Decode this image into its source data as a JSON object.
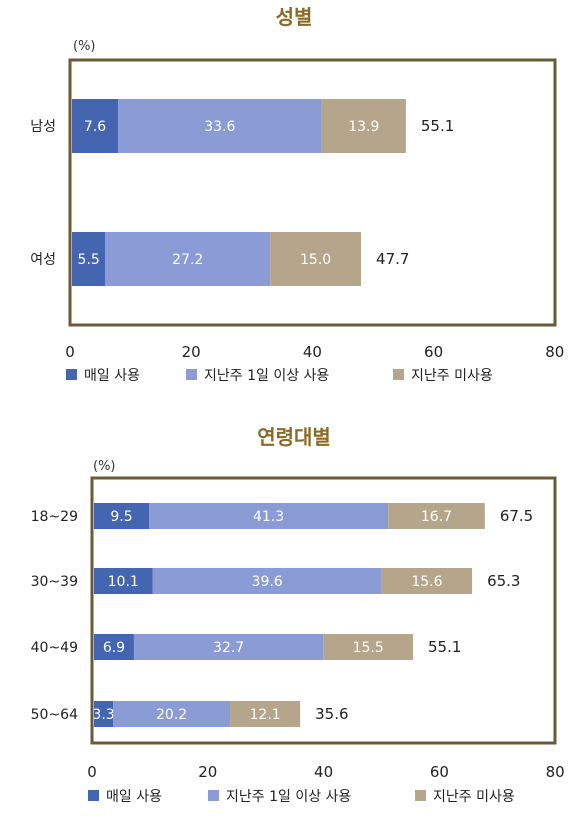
{
  "colors": {
    "title": "#8a6a25",
    "frame": "#6b5a3a",
    "series": [
      "#4466b0",
      "#8a9bd6",
      "#b5a58b"
    ]
  },
  "chart_data": [
    {
      "type": "bar",
      "orientation": "horizontal",
      "stacked": true,
      "title": "성별",
      "unit_label": "(%)",
      "categories": [
        "남성",
        "여성"
      ],
      "series": [
        {
          "name": "매일 사용",
          "values": [
            7.6,
            5.5
          ],
          "labels": [
            "7.6",
            "5.5"
          ]
        },
        {
          "name": "지난주 1일 이상 사용",
          "values": [
            33.6,
            27.2
          ],
          "labels": [
            "33.6",
            "27.2"
          ]
        },
        {
          "name": "지난주 미사용",
          "values": [
            13.9,
            15.0
          ],
          "labels": [
            "13.9",
            "15.0"
          ]
        }
      ],
      "totals": [
        "55.1",
        "47.7"
      ],
      "xlim": [
        0,
        80
      ],
      "xticks": [
        "0",
        "20",
        "40",
        "60",
        "80"
      ],
      "grid": false,
      "legend_position": "bottom"
    },
    {
      "type": "bar",
      "orientation": "horizontal",
      "stacked": true,
      "title": "연령대별",
      "unit_label": "(%)",
      "categories": [
        "18~29",
        "30~39",
        "40~49",
        "50~64"
      ],
      "series": [
        {
          "name": "매일 사용",
          "values": [
            9.5,
            10.1,
            6.9,
            3.3
          ],
          "labels": [
            "9.5",
            "10.1",
            "6.9",
            "3.3"
          ]
        },
        {
          "name": "지난주 1일 이상 사용",
          "values": [
            41.3,
            39.6,
            32.7,
            20.2
          ],
          "labels": [
            "41.3",
            "39.6",
            "32.7",
            "20.2"
          ]
        },
        {
          "name": "지난주 미사용",
          "values": [
            16.7,
            15.6,
            15.5,
            12.1
          ],
          "labels": [
            "16.7",
            "15.6",
            "15.5",
            "12.1"
          ]
        }
      ],
      "totals": [
        "67.5",
        "65.3",
        "55.1",
        "35.6"
      ],
      "xlim": [
        0,
        80
      ],
      "xticks": [
        "0",
        "20",
        "40",
        "60",
        "80"
      ],
      "grid": false,
      "legend_position": "bottom"
    }
  ]
}
